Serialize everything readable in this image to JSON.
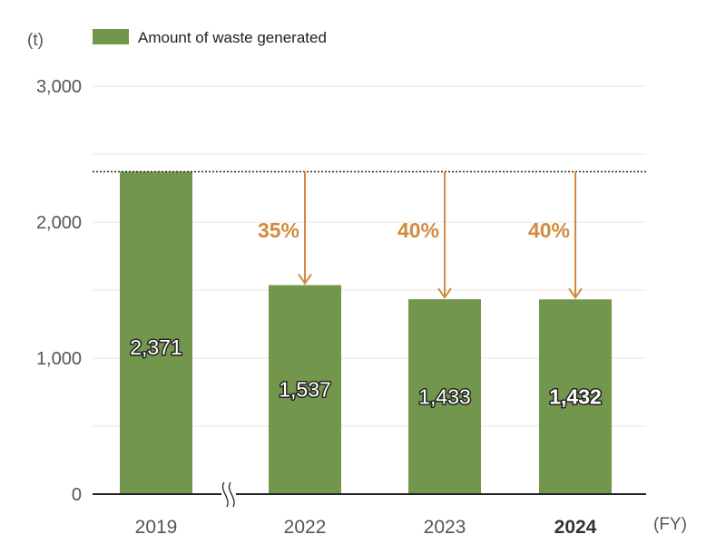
{
  "chart_data": {
    "type": "bar",
    "y_unit": "(t)",
    "x_unit": "(FY)",
    "categories": [
      "2019",
      "2022",
      "2023",
      "2024"
    ],
    "highlight_category": "2024",
    "series": [
      {
        "name": "Amount of waste generated",
        "values": [
          2371,
          1537,
          1433,
          1432
        ],
        "labels": [
          "2,371",
          "1,537",
          "1,433",
          "1,432"
        ],
        "color": "#72964b"
      }
    ],
    "y_ticks": [
      "0",
      "1,000",
      "2,000",
      "3,000"
    ],
    "y_tick_values": [
      0,
      1000,
      2000,
      3000
    ],
    "ylim": [
      0,
      3000
    ],
    "reference_value": 2371,
    "reductions": [
      {
        "category": "2022",
        "label": "35%"
      },
      {
        "category": "2023",
        "label": "40%"
      },
      {
        "category": "2024",
        "label": "40%"
      }
    ],
    "axis_break_between": [
      "2019",
      "2022"
    ],
    "grid": true,
    "legend_position": "top-left",
    "colors": {
      "bar": "#72964b",
      "annotation": "#d38a3e",
      "grid": "#e6e6e6",
      "axis": "#222222"
    }
  }
}
